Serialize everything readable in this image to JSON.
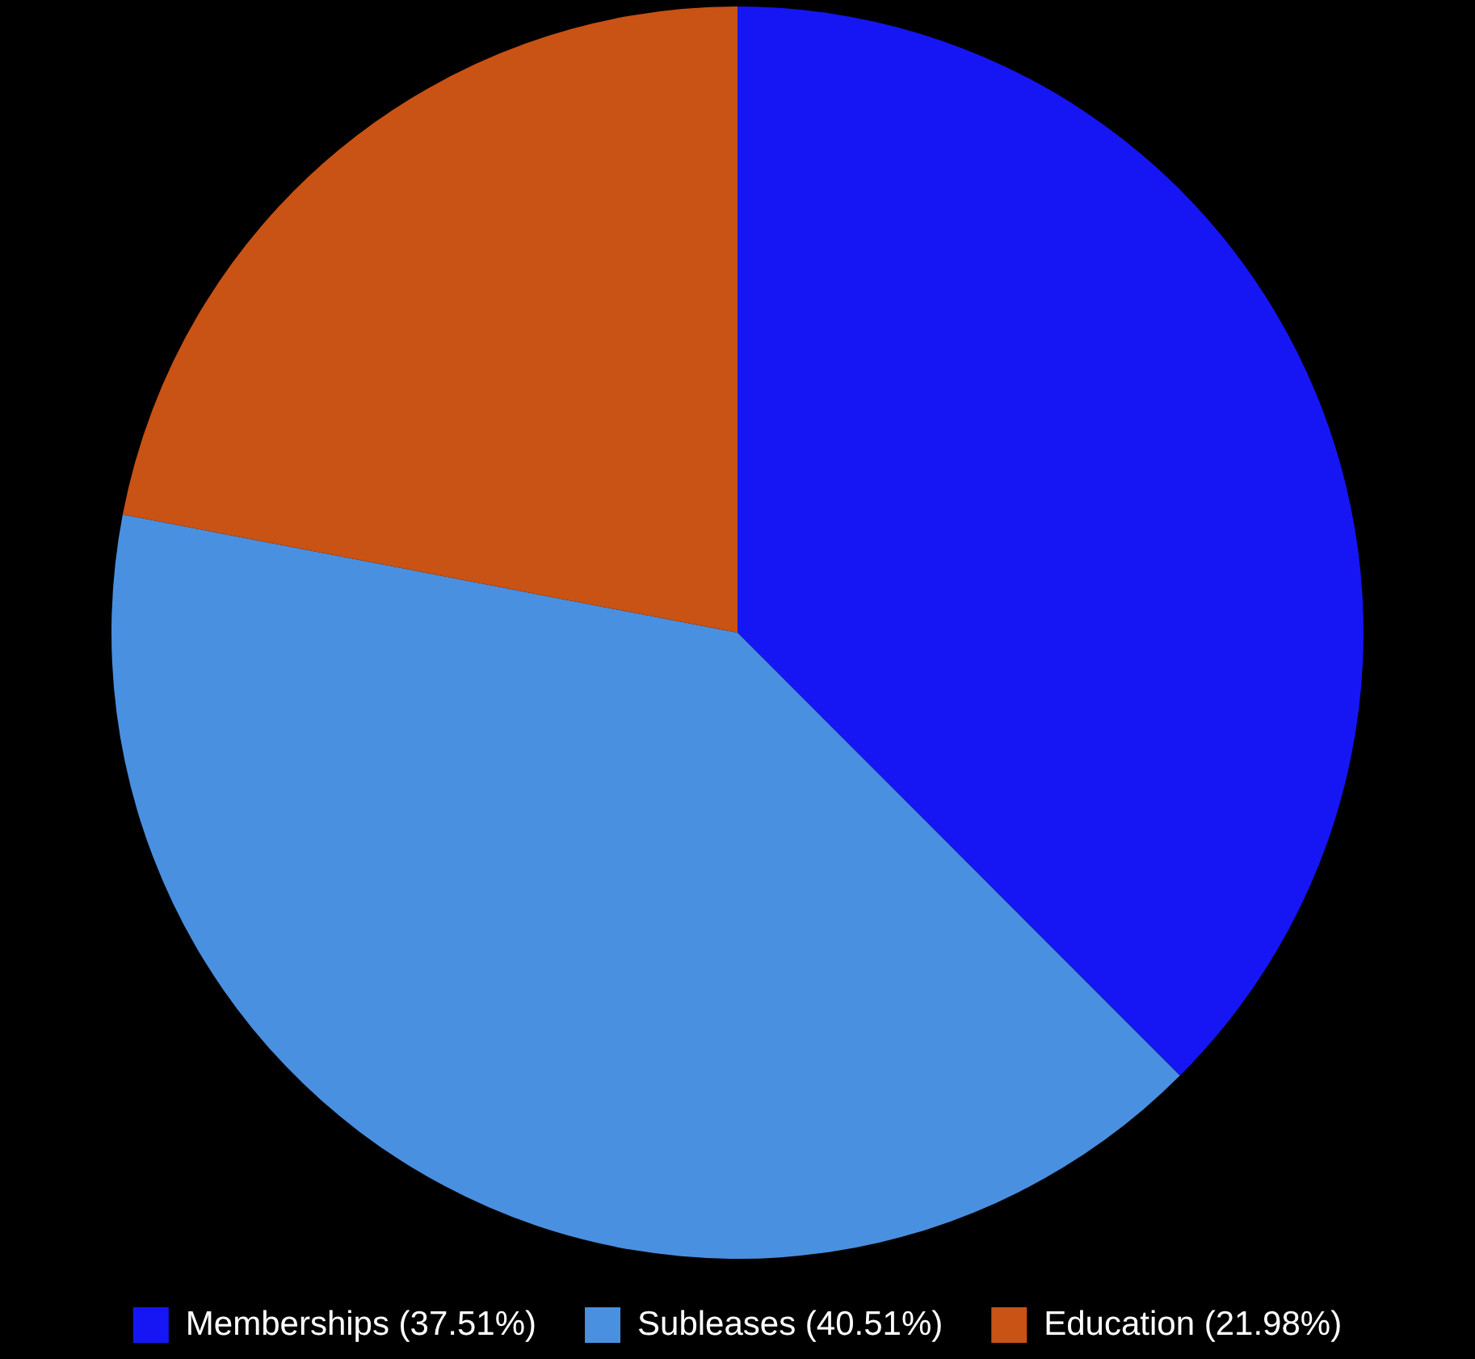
{
  "chart_data": {
    "type": "pie",
    "categories": [
      "Memberships (37.51%)",
      "Subleases (40.51%)",
      "Education (21.98%)"
    ],
    "values": [
      37.51,
      40.51,
      21.98
    ],
    "colors": [
      "#1616f5",
      "#4a90e0",
      "#c95215"
    ],
    "legend": "bottom"
  }
}
